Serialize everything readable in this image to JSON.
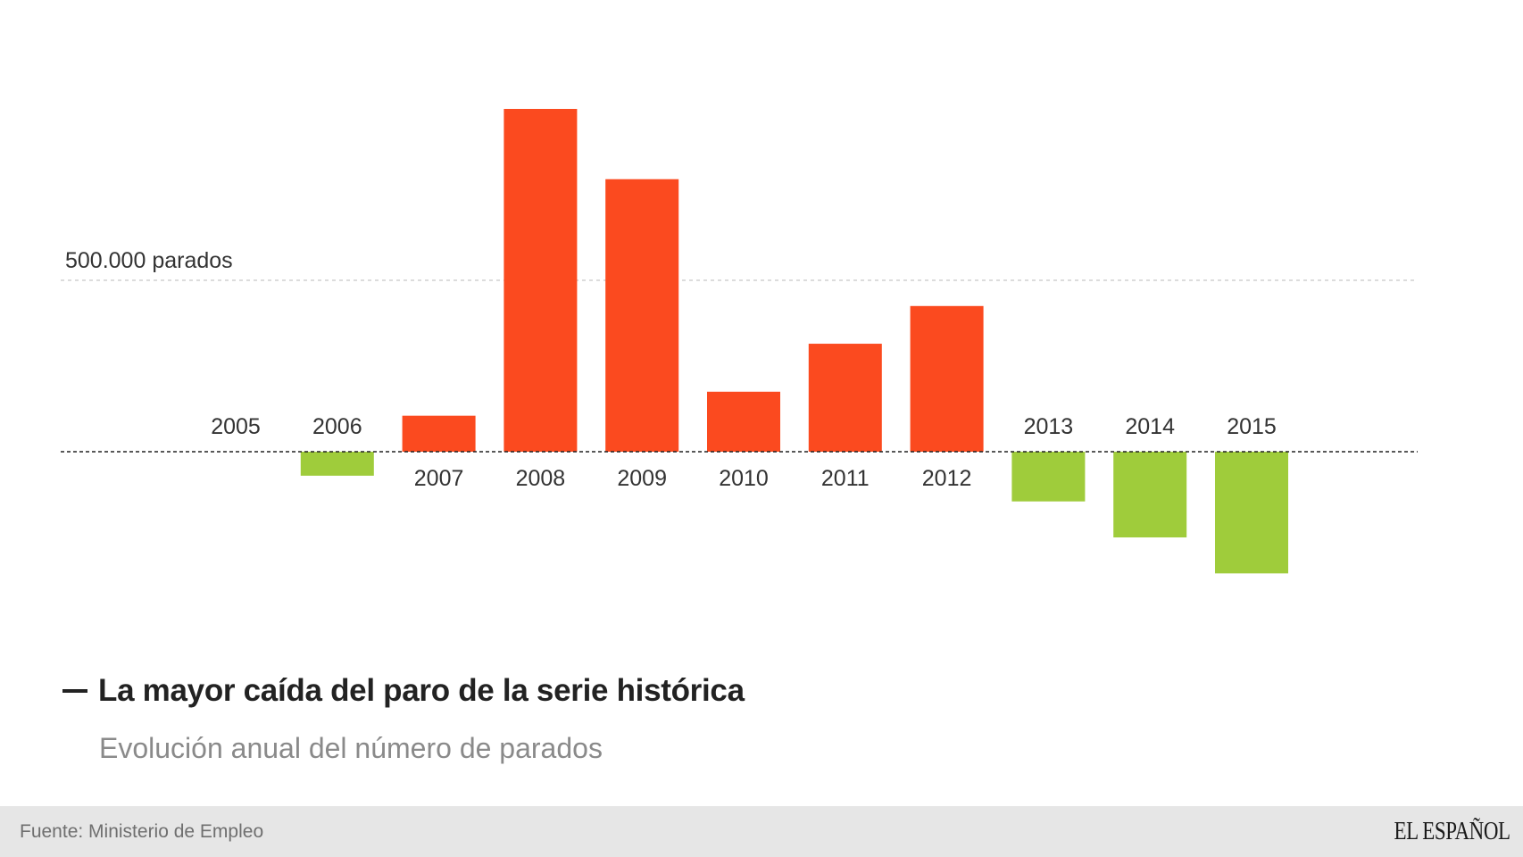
{
  "chart_data": {
    "type": "bar",
    "title": "La mayor caída del paro de la serie histórica",
    "subtitle": "Evolución anual del número de parados",
    "reference_line": {
      "value": 500000,
      "label": "500.000 parados"
    },
    "categories": [
      "2005",
      "2006",
      "2007",
      "2008",
      "2009",
      "2010",
      "2011",
      "2012",
      "2013",
      "2014",
      "2015"
    ],
    "values": [
      0,
      -70000,
      105000,
      1000000,
      795000,
      175000,
      315000,
      425000,
      -145000,
      -250000,
      -355000
    ],
    "ylim": [
      -400000,
      1050000
    ],
    "grid": false,
    "colors": {
      "positive": "#fb4a1f",
      "negative": "#9fcc3b"
    }
  },
  "footer": {
    "source": "Fuente: Ministerio de Empleo",
    "logo": "EL ESPAÑOL"
  }
}
